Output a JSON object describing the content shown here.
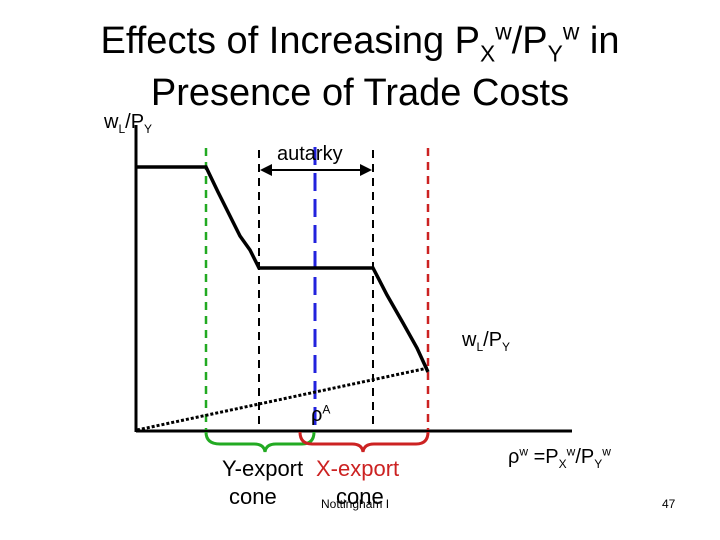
{
  "title": {
    "line1_pre": "Effects of Increasing P",
    "line1_sub1": "X",
    "line1_sup1": "w",
    "line1_slash": "/P",
    "line1_sub2": "Y",
    "line1_sup2": "w",
    "line1_post": " in",
    "line2": "Presence of Trade Costs"
  },
  "y_axis_label": {
    "w": "w",
    "sub1": "L",
    "slash": "/P",
    "sub2": "Y"
  },
  "autarky_label": "autarky",
  "curve_label": {
    "w": "w",
    "sub1": "L",
    "slash": "/P",
    "sub2": "Y"
  },
  "rho_a_label": {
    "rho": "ρ",
    "sup": "A"
  },
  "x_axis_label": {
    "pre": "ρ",
    "sup0": "w",
    "eq": " =P",
    "sub1": "X",
    "sup1": "w",
    "slash": "/P",
    "sub2": "Y",
    "sup2": "w"
  },
  "y_export_label": {
    "line1": "Y-export",
    "line2": "cone"
  },
  "x_export_label": {
    "line1": "X-export",
    "line2": "cone"
  },
  "footer": "Nottingham I",
  "page_number": "47",
  "colors": {
    "green": "#22aa22",
    "red": "#cc2222",
    "blue": "#2222dd",
    "black": "#000000"
  }
}
